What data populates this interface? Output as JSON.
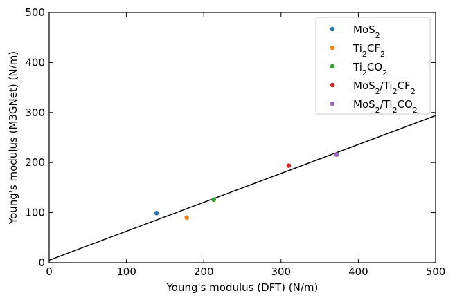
{
  "chart_data": {
    "type": "scatter",
    "xlabel": "Young's modulus (DFT) (N/m)",
    "ylabel": "Young's modulus (M3GNet) (N/m)",
    "xlim": [
      0,
      500
    ],
    "ylim": [
      0,
      500
    ],
    "x_ticks": [
      "0",
      "100",
      "200",
      "300",
      "400",
      "500"
    ],
    "y_ticks": [
      "0",
      "100",
      "200",
      "300",
      "400",
      "500"
    ],
    "grid": false,
    "legend_position": "top-right",
    "series": [
      {
        "name_base": "MoS",
        "name_sub": "2",
        "name": "MoS2",
        "color": "#1f77b4",
        "points": [
          {
            "x": 139,
            "y": 99
          }
        ]
      },
      {
        "name_base": "Ti",
        "name_sub": "2",
        "name_rest": "CF",
        "name_sub2": "2",
        "name": "Ti2CF2",
        "color": "#ff7f0e",
        "points": [
          {
            "x": 178,
            "y": 90
          }
        ]
      },
      {
        "name_base": "Ti",
        "name_sub": "2",
        "name_rest": "CO",
        "name_sub2": "2",
        "name": "Ti2CO2",
        "color": "#2ca02c",
        "points": [
          {
            "x": 213,
            "y": 126
          }
        ]
      },
      {
        "name": "MoS2/Ti2CF2",
        "color": "#d62728",
        "points": [
          {
            "x": 310,
            "y": 194
          }
        ]
      },
      {
        "name": "MoS2/Ti2CO2",
        "color": "#9467bd",
        "points": [
          {
            "x": 372,
            "y": 216
          }
        ]
      }
    ],
    "fit_line": {
      "color": "#000000",
      "points": [
        {
          "x": 0,
          "y": 5
        },
        {
          "x": 500,
          "y": 294
        }
      ]
    }
  }
}
